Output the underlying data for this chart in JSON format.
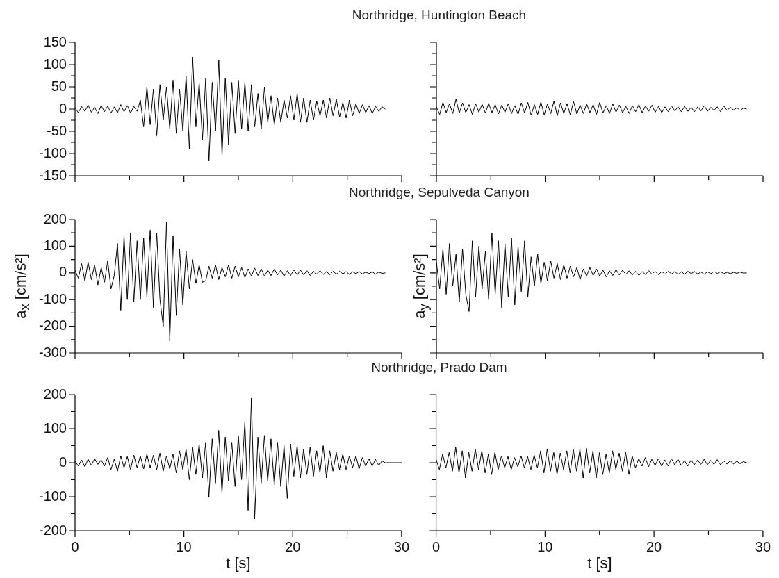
{
  "chart_data": [
    {
      "type": "line",
      "title": "Northridge, Huntington Beach",
      "tick_labels": "y",
      "xlim": [
        0,
        30
      ],
      "xticks": [
        0,
        {
          "value": 5,
          "label": null
        },
        10,
        {
          "value": 15,
          "label": null
        },
        20,
        {
          "value": 25,
          "label": null
        },
        30
      ],
      "ylim": [
        -150,
        150
      ],
      "yticks": [
        -150,
        {
          "value": -125,
          "label": null
        },
        -100,
        {
          "value": -75,
          "label": null
        },
        -50,
        {
          "value": -25,
          "label": null
        },
        0,
        {
          "value": 25,
          "label": null
        },
        50,
        {
          "value": 75,
          "label": null
        },
        100,
        {
          "value": 125,
          "label": null
        },
        150
      ],
      "x": [
        0,
        0.3,
        0.6,
        0.9,
        1.2,
        1.5,
        1.8,
        2.1,
        2.4,
        2.7,
        3,
        3.3,
        3.6,
        3.9,
        4.2,
        4.5,
        4.8,
        5.1,
        5.4,
        5.7,
        6,
        6.3,
        6.6,
        6.9,
        7.2,
        7.5,
        7.8,
        8.1,
        8.4,
        8.7,
        9,
        9.3,
        9.6,
        9.9,
        10.2,
        10.5,
        10.8,
        11.1,
        11.4,
        11.7,
        12,
        12.3,
        12.6,
        12.9,
        13.2,
        13.5,
        13.8,
        14.1,
        14.4,
        14.7,
        15,
        15.3,
        15.6,
        15.9,
        16.2,
        16.5,
        16.8,
        17.1,
        17.4,
        17.7,
        18,
        18.3,
        18.6,
        18.9,
        19.2,
        19.5,
        19.8,
        20.1,
        20.4,
        20.7,
        21,
        21.3,
        21.6,
        21.9,
        22.2,
        22.5,
        22.8,
        23.1,
        23.4,
        23.7,
        24,
        24.3,
        24.6,
        24.9,
        25.2,
        25.5,
        25.8,
        26.1,
        26.4,
        26.7,
        27,
        27.3,
        27.6,
        27.9,
        28.2,
        28.5
      ],
      "series": [
        {
          "color": "#000000",
          "values": [
            3,
            -8,
            6,
            -5,
            9,
            -7,
            4,
            -10,
            8,
            -6,
            7,
            -9,
            5,
            -8,
            10,
            -6,
            8,
            -9,
            6,
            -5,
            20,
            -40,
            50,
            -35,
            45,
            -60,
            55,
            -25,
            50,
            -45,
            65,
            -55,
            45,
            -50,
            75,
            -90,
            117,
            -40,
            60,
            -70,
            70,
            -117,
            60,
            -50,
            110,
            -105,
            70,
            -80,
            60,
            -55,
            65,
            -45,
            60,
            -50,
            55,
            -40,
            35,
            -45,
            50,
            -30,
            30,
            -35,
            25,
            -30,
            20,
            -20,
            30,
            -25,
            35,
            -30,
            25,
            -30,
            20,
            -25,
            18,
            -15,
            20,
            -20,
            25,
            -15,
            22,
            -18,
            15,
            -20,
            20,
            -15,
            12,
            -10,
            10,
            -8,
            8,
            -10,
            6,
            -5,
            5,
            0
          ]
        }
      ]
    },
    {
      "type": "line",
      "tick_labels": false,
      "xlim": [
        0,
        30
      ],
      "xticks": [
        0,
        {
          "value": 5,
          "label": null
        },
        10,
        {
          "value": 15,
          "label": null
        },
        20,
        {
          "value": 25,
          "label": null
        },
        30
      ],
      "ylim": [
        -150,
        150
      ],
      "yticks": [
        -150,
        {
          "value": -125,
          "label": null
        },
        -100,
        {
          "value": -75,
          "label": null
        },
        -50,
        {
          "value": -25,
          "label": null
        },
        0,
        {
          "value": 25,
          "label": null
        },
        50,
        {
          "value": 75,
          "label": null
        },
        100,
        {
          "value": 125,
          "label": null
        },
        150
      ],
      "x": [
        0,
        0.3,
        0.6,
        0.9,
        1.2,
        1.5,
        1.8,
        2.1,
        2.4,
        2.7,
        3,
        3.3,
        3.6,
        3.9,
        4.2,
        4.5,
        4.8,
        5.1,
        5.4,
        5.7,
        6,
        6.3,
        6.6,
        6.9,
        7.2,
        7.5,
        7.8,
        8.1,
        8.4,
        8.7,
        9,
        9.3,
        9.6,
        9.9,
        10.2,
        10.5,
        10.8,
        11.1,
        11.4,
        11.7,
        12,
        12.3,
        12.6,
        12.9,
        13.2,
        13.5,
        13.8,
        14.1,
        14.4,
        14.7,
        15,
        15.3,
        15.6,
        15.9,
        16.2,
        16.5,
        16.8,
        17.1,
        17.4,
        17.7,
        18,
        18.3,
        18.6,
        18.9,
        19.2,
        19.5,
        19.8,
        20.1,
        20.4,
        20.7,
        21,
        21.3,
        21.6,
        21.9,
        22.2,
        22.5,
        22.8,
        23.1,
        23.4,
        23.7,
        24,
        24.3,
        24.6,
        24.9,
        25.2,
        25.5,
        25.8,
        26.1,
        26.4,
        26.7,
        27,
        27.3,
        27.6,
        27.9,
        28.2,
        28.5
      ],
      "series": [
        {
          "color": "#000000",
          "values": [
            5,
            -12,
            15,
            -8,
            12,
            -10,
            22,
            -9,
            14,
            -8,
            10,
            -12,
            12,
            -7,
            11,
            -9,
            13,
            -8,
            10,
            -11,
            9,
            -7,
            12,
            -10,
            8,
            -12,
            14,
            -9,
            15,
            -14,
            10,
            -12,
            16,
            -13,
            12,
            -10,
            18,
            -15,
            14,
            -10,
            12,
            -13,
            17,
            -11,
            9,
            -10,
            12,
            -8,
            10,
            -12,
            15,
            -9,
            8,
            -10,
            12,
            -7,
            9,
            -8,
            6,
            -10,
            8,
            -6,
            10,
            -8,
            7,
            -5,
            9,
            -7,
            6,
            -8,
            5,
            -6,
            7,
            -4,
            5,
            -6,
            6,
            -5,
            4,
            -6,
            5,
            -4,
            8,
            -5,
            4,
            -3,
            5,
            -6,
            7,
            -3,
            4,
            -2,
            3,
            -3,
            2,
            0
          ]
        }
      ]
    },
    {
      "type": "line",
      "title": "Northridge, Sepulveda Canyon",
      "ylabel": "a$_{x}$ [cm/s²]",
      "tick_labels": "y",
      "xlim": [
        0,
        30
      ],
      "xticks": [
        0,
        {
          "value": 5,
          "label": null
        },
        10,
        {
          "value": 15,
          "label": null
        },
        20,
        {
          "value": 25,
          "label": null
        },
        30
      ],
      "ylim": [
        -300,
        200
      ],
      "yticks": [
        -300,
        {
          "value": -250,
          "label": null
        },
        -200,
        {
          "value": -150,
          "label": null
        },
        -100,
        {
          "value": -50,
          "label": null
        },
        0,
        {
          "value": 50,
          "label": null
        },
        100,
        {
          "value": 150,
          "label": null
        },
        200
      ],
      "x": [
        0,
        0.3,
        0.6,
        0.9,
        1.2,
        1.5,
        1.8,
        2.1,
        2.4,
        2.7,
        3,
        3.3,
        3.6,
        3.9,
        4.2,
        4.5,
        4.8,
        5.1,
        5.4,
        5.7,
        6,
        6.3,
        6.6,
        6.9,
        7.2,
        7.5,
        7.8,
        8.1,
        8.4,
        8.7,
        9,
        9.3,
        9.6,
        9.9,
        10.2,
        10.5,
        10.8,
        11.1,
        11.4,
        11.7,
        12,
        12.3,
        12.6,
        12.9,
        13.2,
        13.5,
        13.8,
        14.1,
        14.4,
        14.7,
        15,
        15.3,
        15.6,
        15.9,
        16.2,
        16.5,
        16.8,
        17.1,
        17.4,
        17.7,
        18,
        18.3,
        18.6,
        18.9,
        19.2,
        19.5,
        19.8,
        20.1,
        20.4,
        20.7,
        21,
        21.3,
        21.6,
        21.9,
        22.2,
        22.5,
        22.8,
        23.1,
        23.4,
        23.7,
        24,
        24.3,
        24.6,
        24.9,
        25.2,
        25.5,
        25.8,
        26.1,
        26.4,
        26.7,
        27,
        27.3,
        27.6,
        27.9,
        28.2,
        28.5
      ],
      "series": [
        {
          "color": "#000000",
          "values": [
            10,
            -20,
            35,
            -30,
            40,
            -25,
            30,
            -45,
            20,
            -35,
            45,
            -60,
            -10,
            110,
            -140,
            140,
            -100,
            150,
            -110,
            120,
            -100,
            130,
            -90,
            160,
            -130,
            150,
            -100,
            -200,
            190,
            -255,
            140,
            -160,
            90,
            -120,
            80,
            -60,
            50,
            -40,
            30,
            -35,
            -30,
            25,
            -20,
            30,
            -25,
            20,
            -15,
            30,
            -20,
            25,
            -15,
            20,
            -18,
            15,
            -12,
            18,
            -10,
            15,
            -12,
            10,
            -10,
            15,
            -8,
            10,
            -12,
            8,
            -10,
            12,
            -8,
            10,
            -7,
            8,
            -10,
            6,
            -5,
            8,
            -6,
            5,
            -7,
            6,
            -5,
            6,
            -4,
            5,
            -6,
            4,
            -3,
            5,
            -4,
            3,
            -3,
            4,
            -5,
            3,
            -2,
            0
          ]
        }
      ]
    },
    {
      "type": "line",
      "ylabel": "a$_{y}$ [cm/s²]",
      "tick_labels": false,
      "xlim": [
        0,
        30
      ],
      "xticks": [
        0,
        {
          "value": 5,
          "label": null
        },
        10,
        {
          "value": 15,
          "label": null
        },
        20,
        {
          "value": 25,
          "label": null
        },
        30
      ],
      "ylim": [
        -300,
        200
      ],
      "yticks": [
        -300,
        {
          "value": -250,
          "label": null
        },
        -200,
        {
          "value": -150,
          "label": null
        },
        -100,
        {
          "value": -50,
          "label": null
        },
        0,
        {
          "value": 50,
          "label": null
        },
        100,
        {
          "value": 150,
          "label": null
        },
        200
      ],
      "x": [
        0,
        0.3,
        0.6,
        0.9,
        1.2,
        1.5,
        1.8,
        2.1,
        2.4,
        2.7,
        3,
        3.3,
        3.6,
        3.9,
        4.2,
        4.5,
        4.8,
        5.1,
        5.4,
        5.7,
        6,
        6.3,
        6.6,
        6.9,
        7.2,
        7.5,
        7.8,
        8.1,
        8.4,
        8.7,
        9,
        9.3,
        9.6,
        9.9,
        10.2,
        10.5,
        10.8,
        11.1,
        11.4,
        11.7,
        12,
        12.3,
        12.6,
        12.9,
        13.2,
        13.5,
        13.8,
        14.1,
        14.4,
        14.7,
        15,
        15.3,
        15.6,
        15.9,
        16.2,
        16.5,
        16.8,
        17.1,
        17.4,
        17.7,
        18,
        18.3,
        18.6,
        18.9,
        19.2,
        19.5,
        19.8,
        20.1,
        20.4,
        20.7,
        21,
        21.3,
        21.6,
        21.9,
        22.2,
        22.5,
        22.8,
        23.1,
        23.4,
        23.7,
        24,
        24.3,
        24.6,
        24.9,
        25.2,
        25.5,
        25.8,
        26.1,
        26.4,
        26.7,
        27,
        27.3,
        27.6,
        27.9,
        28.2,
        28.5
      ],
      "series": [
        {
          "color": "#000000",
          "values": [
            40,
            -60,
            90,
            -80,
            110,
            -50,
            70,
            -110,
            90,
            -80,
            -145,
            120,
            -90,
            100,
            -60,
            80,
            -100,
            150,
            -80,
            120,
            -130,
            110,
            -90,
            130,
            -120,
            100,
            -70,
            120,
            -90,
            60,
            -50,
            70,
            -40,
            40,
            -30,
            45,
            -20,
            35,
            -25,
            30,
            -20,
            25,
            -15,
            20,
            -25,
            15,
            -12,
            20,
            -10,
            15,
            -12,
            10,
            -15,
            8,
            -10,
            12,
            -8,
            10,
            -6,
            8,
            -8,
            6,
            -10,
            5,
            -6,
            8,
            -5,
            6,
            -7,
            5,
            -5,
            6,
            -4,
            5,
            -6,
            4,
            -5,
            6,
            -3,
            5,
            -4,
            3,
            -5,
            4,
            -3,
            5,
            -2,
            4,
            -3,
            2,
            -3,
            2,
            -2,
            3,
            -1,
            0
          ]
        }
      ]
    },
    {
      "type": "line",
      "title": "Northridge, Prado Dam",
      "xlabel": "t [s]",
      "xlim": [
        0,
        30
      ],
      "xticks": [
        0,
        {
          "value": 5,
          "label": null
        },
        10,
        {
          "value": 15,
          "label": null
        },
        20,
        {
          "value": 25,
          "label": null
        },
        30
      ],
      "ylim": [
        -200,
        200
      ],
      "yticks": [
        -200,
        {
          "value": -150,
          "label": null
        },
        -100,
        {
          "value": -50,
          "label": null
        },
        0,
        {
          "value": 50,
          "label": null
        },
        100,
        {
          "value": 150,
          "label": null
        },
        200
      ],
      "x": [
        0,
        0.3,
        0.6,
        0.9,
        1.2,
        1.5,
        1.8,
        2.1,
        2.4,
        2.7,
        3,
        3.3,
        3.6,
        3.9,
        4.2,
        4.5,
        4.8,
        5.1,
        5.4,
        5.7,
        6,
        6.3,
        6.6,
        6.9,
        7.2,
        7.5,
        7.8,
        8.1,
        8.4,
        8.7,
        9,
        9.3,
        9.6,
        9.9,
        10.2,
        10.5,
        10.8,
        11.1,
        11.4,
        11.7,
        12,
        12.3,
        12.6,
        12.9,
        13.2,
        13.5,
        13.8,
        14.1,
        14.4,
        14.7,
        15,
        15.3,
        15.6,
        15.9,
        16.2,
        16.5,
        16.8,
        17.1,
        17.4,
        17.7,
        18,
        18.3,
        18.6,
        18.9,
        19.2,
        19.5,
        19.8,
        20.1,
        20.4,
        20.7,
        21,
        21.3,
        21.6,
        21.9,
        22.2,
        22.5,
        22.8,
        23.1,
        23.4,
        23.7,
        24,
        24.3,
        24.6,
        24.9,
        25.2,
        25.5,
        25.8,
        26.1,
        26.4,
        26.7,
        27,
        27.3,
        27.6,
        27.9,
        28.2,
        28.5,
        30
      ],
      "series": [
        {
          "color": "#000000",
          "values": [
            5,
            -10,
            8,
            -12,
            10,
            -8,
            12,
            -5,
            8,
            -10,
            15,
            -20,
            10,
            -25,
            20,
            -15,
            18,
            -20,
            22,
            -15,
            20,
            -18,
            25,
            -15,
            22,
            -20,
            28,
            -25,
            20,
            -18,
            25,
            -30,
            35,
            -20,
            40,
            -50,
            45,
            -35,
            55,
            -45,
            60,
            -100,
            70,
            -60,
            95,
            -90,
            75,
            -55,
            60,
            -70,
            80,
            -50,
            120,
            -140,
            190,
            -165,
            75,
            -60,
            80,
            -55,
            70,
            -65,
            60,
            -70,
            50,
            -105,
            55,
            -40,
            50,
            -45,
            40,
            -35,
            45,
            -40,
            35,
            -30,
            50,
            -45,
            35,
            -25,
            30,
            -20,
            25,
            -20,
            20,
            -15,
            20,
            -18,
            15,
            -10,
            12,
            -10,
            10,
            -8,
            5,
            0,
            0
          ]
        }
      ]
    },
    {
      "type": "line",
      "xlabel": "t [s]",
      "tick_labels": "x",
      "xlim": [
        0,
        30
      ],
      "xticks": [
        0,
        {
          "value": 5,
          "label": null
        },
        10,
        {
          "value": 15,
          "label": null
        },
        20,
        {
          "value": 25,
          "label": null
        },
        30
      ],
      "ylim": [
        -200,
        200
      ],
      "yticks": [
        -200,
        {
          "value": -150,
          "label": null
        },
        -100,
        {
          "value": -50,
          "label": null
        },
        0,
        {
          "value": 50,
          "label": null
        },
        100,
        {
          "value": 150,
          "label": null
        },
        200
      ],
      "x": [
        0,
        0.3,
        0.6,
        0.9,
        1.2,
        1.5,
        1.8,
        2.1,
        2.4,
        2.7,
        3,
        3.3,
        3.6,
        3.9,
        4.2,
        4.5,
        4.8,
        5.1,
        5.4,
        5.7,
        6,
        6.3,
        6.6,
        6.9,
        7.2,
        7.5,
        7.8,
        8.1,
        8.4,
        8.7,
        9,
        9.3,
        9.6,
        9.9,
        10.2,
        10.5,
        10.8,
        11.1,
        11.4,
        11.7,
        12,
        12.3,
        12.6,
        12.9,
        13.2,
        13.5,
        13.8,
        14.1,
        14.4,
        14.7,
        15,
        15.3,
        15.6,
        15.9,
        16.2,
        16.5,
        16.8,
        17.1,
        17.4,
        17.7,
        18,
        18.3,
        18.6,
        18.9,
        19.2,
        19.5,
        19.8,
        20.1,
        20.4,
        20.7,
        21,
        21.3,
        21.6,
        21.9,
        22.2,
        22.5,
        22.8,
        23.1,
        23.4,
        23.7,
        24,
        24.3,
        24.6,
        24.9,
        25.2,
        25.5,
        25.8,
        26.1,
        26.4,
        26.7,
        27,
        27.3,
        27.6,
        27.9,
        28.2,
        28.5
      ],
      "series": [
        {
          "color": "#000000",
          "values": [
            10,
            -20,
            25,
            -15,
            30,
            -25,
            45,
            -30,
            35,
            -45,
            30,
            -25,
            40,
            -20,
            35,
            -30,
            25,
            -35,
            30,
            -20,
            20,
            -15,
            18,
            -20,
            15,
            -12,
            20,
            -15,
            18,
            -20,
            22,
            -15,
            35,
            -30,
            40,
            -25,
            30,
            -35,
            28,
            -20,
            35,
            -30,
            38,
            -25,
            40,
            -45,
            42,
            -30,
            35,
            -45,
            30,
            -35,
            25,
            -30,
            35,
            -20,
            28,
            -25,
            30,
            -35,
            20,
            -15,
            12,
            -10,
            15,
            -12,
            10,
            -8,
            12,
            -10,
            8,
            -10,
            12,
            -6,
            10,
            -8,
            6,
            -10,
            8,
            -6,
            8,
            -5,
            10,
            -6,
            7,
            -5,
            9,
            -6,
            5,
            -4,
            6,
            -4,
            5,
            -3,
            3,
            0
          ]
        }
      ]
    }
  ]
}
